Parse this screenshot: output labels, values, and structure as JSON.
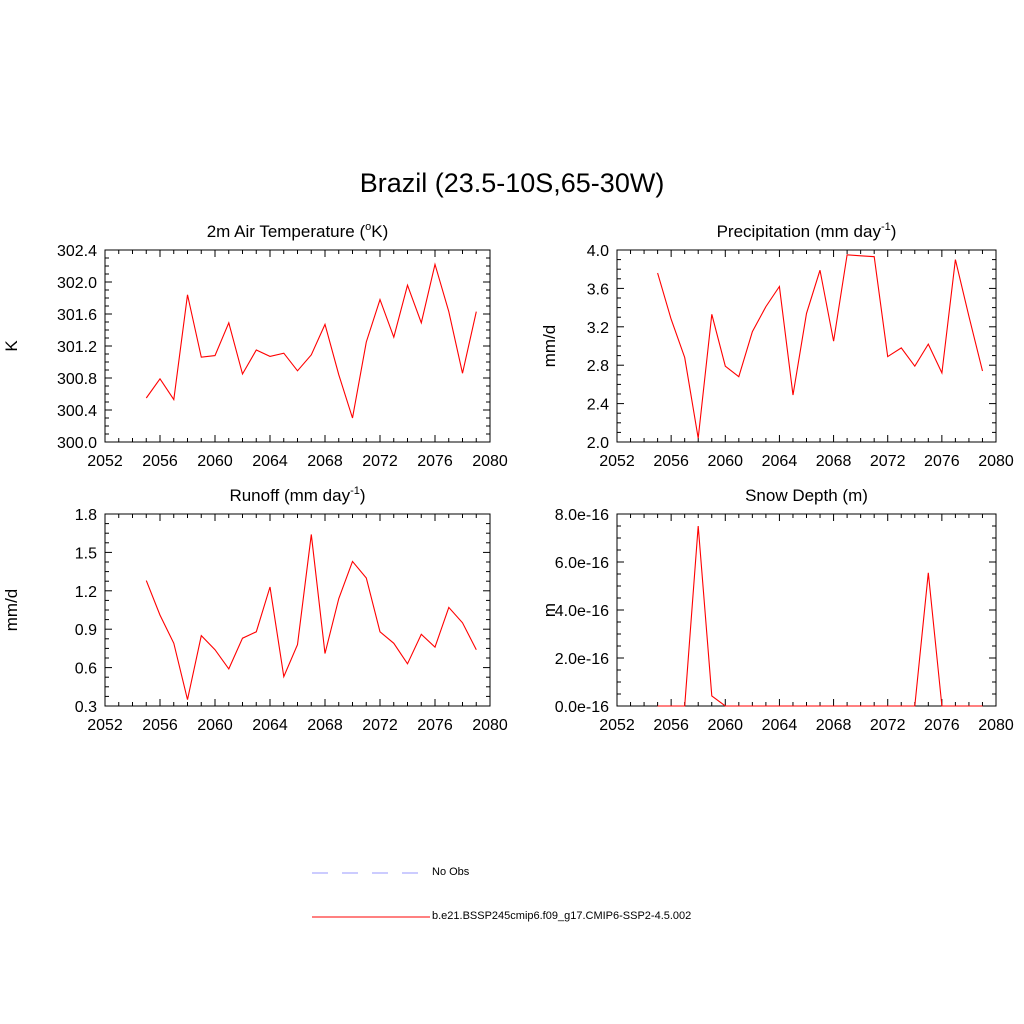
{
  "title": "Brazil (23.5-10S,65-30W)",
  "chart_data": [
    {
      "type": "line",
      "title": "2m Air Temperature (",
      "title_sup": "o",
      "title_tail": "K)",
      "ylabel": "K",
      "xlim": [
        2052,
        2080
      ],
      "ylim": [
        300.0,
        302.4
      ],
      "xticks": [
        "2052",
        "2056",
        "2060",
        "2064",
        "2068",
        "2072",
        "2076",
        "2080"
      ],
      "yticks": [
        "300.0",
        "300.4",
        "300.8",
        "301.2",
        "301.6",
        "302.0",
        "302.4"
      ],
      "ytick_values": [
        300.0,
        300.4,
        300.8,
        301.2,
        301.6,
        302.0,
        302.4
      ],
      "series": [
        {
          "color": "#ff0000",
          "x": [
            2055,
            2056,
            2057,
            2058,
            2059,
            2060,
            2061,
            2062,
            2063,
            2064,
            2065,
            2066,
            2067,
            2068,
            2069,
            2070,
            2071,
            2072,
            2073,
            2074,
            2075,
            2076,
            2077,
            2078,
            2079
          ],
          "values": [
            300.55,
            300.79,
            300.53,
            301.84,
            301.06,
            301.08,
            301.49,
            300.85,
            301.15,
            301.07,
            301.11,
            300.89,
            301.09,
            301.47,
            300.84,
            300.3,
            301.25,
            301.78,
            301.31,
            301.96,
            301.49,
            302.22,
            301.63,
            300.86,
            301.63
          ]
        }
      ]
    },
    {
      "type": "line",
      "title": "Precipitation (mm day",
      "title_sup": "-1",
      "title_tail": ")",
      "ylabel": "mm/d",
      "xlim": [
        2052,
        2080
      ],
      "ylim": [
        2.0,
        4.0
      ],
      "xticks": [
        "2052",
        "2056",
        "2060",
        "2064",
        "2068",
        "2072",
        "2076",
        "2080"
      ],
      "yticks": [
        "2.0",
        "2.4",
        "2.8",
        "3.2",
        "3.6",
        "4.0"
      ],
      "ytick_values": [
        2.0,
        2.4,
        2.8,
        3.2,
        3.6,
        4.0
      ],
      "series": [
        {
          "color": "#ff0000",
          "x": [
            2055,
            2056,
            2057,
            2058,
            2059,
            2060,
            2061,
            2062,
            2063,
            2064,
            2065,
            2066,
            2067,
            2068,
            2069,
            2070,
            2071,
            2072,
            2073,
            2074,
            2075,
            2076,
            2077,
            2078,
            2079
          ],
          "values": [
            3.76,
            3.28,
            2.88,
            2.04,
            3.33,
            2.79,
            2.68,
            3.15,
            3.41,
            3.62,
            2.49,
            3.34,
            3.79,
            3.05,
            3.95,
            3.94,
            3.93,
            2.89,
            2.98,
            2.79,
            3.02,
            2.72,
            3.9,
            3.31,
            2.74
          ]
        }
      ]
    },
    {
      "type": "line",
      "title": "Runoff (mm day",
      "title_sup": "-1",
      "title_tail": ")",
      "ylabel": "mm/d",
      "xlim": [
        2052,
        2080
      ],
      "ylim": [
        0.3,
        1.8
      ],
      "xticks": [
        "2052",
        "2056",
        "2060",
        "2064",
        "2068",
        "2072",
        "2076",
        "2080"
      ],
      "yticks": [
        "0.3",
        "0.6",
        "0.9",
        "1.2",
        "1.5",
        "1.8"
      ],
      "ytick_values": [
        0.3,
        0.6,
        0.9,
        1.2,
        1.5,
        1.8
      ],
      "series": [
        {
          "color": "#ff0000",
          "x": [
            2055,
            2056,
            2057,
            2058,
            2059,
            2060,
            2061,
            2062,
            2063,
            2064,
            2065,
            2066,
            2067,
            2068,
            2069,
            2070,
            2071,
            2072,
            2073,
            2074,
            2075,
            2076,
            2077,
            2078,
            2079
          ],
          "values": [
            1.28,
            1.01,
            0.79,
            0.35,
            0.85,
            0.74,
            0.59,
            0.83,
            0.88,
            1.23,
            0.53,
            0.78,
            1.64,
            0.71,
            1.14,
            1.43,
            1.3,
            0.88,
            0.79,
            0.63,
            0.86,
            0.76,
            1.07,
            0.95,
            0.74
          ]
        }
      ]
    },
    {
      "type": "line",
      "title": "Snow Depth (m)",
      "title_sup": "",
      "title_tail": "",
      "ylabel": "m",
      "xlim": [
        2052,
        2080
      ],
      "ylim": [
        0,
        8e-16
      ],
      "xticks": [
        "2052",
        "2056",
        "2060",
        "2064",
        "2068",
        "2072",
        "2076",
        "2080"
      ],
      "yticks": [
        "0.0e-16",
        "2.0e-16",
        "4.0e-16",
        "6.0e-16",
        "8.0e-16"
      ],
      "ytick_values": [
        0,
        2e-16,
        4e-16,
        6e-16,
        8e-16
      ],
      "series": [
        {
          "color": "#ff0000",
          "x": [
            2055,
            2056,
            2057,
            2058,
            2059,
            2060,
            2061,
            2062,
            2063,
            2064,
            2065,
            2066,
            2067,
            2068,
            2069,
            2070,
            2071,
            2072,
            2073,
            2074,
            2075,
            2076,
            2077,
            2078,
            2079
          ],
          "values": [
            0,
            0,
            0,
            7.5e-16,
            4.2e-17,
            0,
            0,
            0,
            0,
            0,
            0,
            0,
            0,
            0,
            0,
            0,
            0,
            0,
            0,
            0,
            5.55e-16,
            0,
            0,
            0,
            0
          ]
        }
      ]
    }
  ],
  "legend": {
    "items": [
      {
        "label": "No Obs",
        "color": "#9999ff",
        "style": "dashed"
      },
      {
        "label": "b.e21.BSSP245cmip6.f09_g17.CMIP6-SSP2-4.5.002",
        "color": "#ff0000",
        "style": "solid"
      }
    ]
  }
}
